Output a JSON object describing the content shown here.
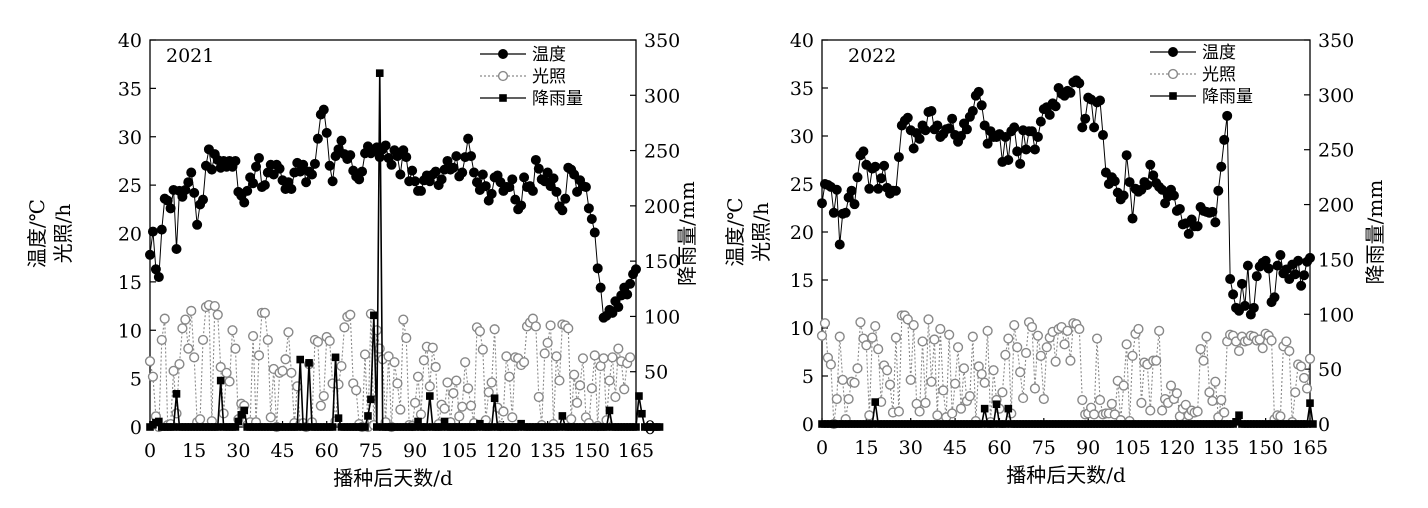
{
  "chart_data": [
    {
      "type": "line",
      "year_label": "2021",
      "xlabel": "播种后天数/d",
      "ylabel_left": [
        "温度/℃",
        "光照/h"
      ],
      "ylabel_right": "降雨量/mm",
      "xlim": [
        0,
        165
      ],
      "ylim_left": [
        0,
        40
      ],
      "ylim_right": [
        0,
        350
      ],
      "xticks": [
        "0",
        "15",
        "30",
        "45",
        "60",
        "75",
        "90",
        "105",
        "120",
        "135",
        "150",
        "165"
      ],
      "yticks_left": [
        "0",
        "5",
        "10",
        "15",
        "20",
        "25",
        "30",
        "35",
        "40"
      ],
      "yticks_right": [
        "0",
        "50",
        "100",
        "150",
        "200",
        "250",
        "300",
        "350"
      ],
      "legend_position": "top-right",
      "series": [
        {
          "name": "温度",
          "axis": "left",
          "marker": "filled-circle",
          "values": [
            17.8,
            20.2,
            16.3,
            15.5,
            20.4,
            23.6,
            23.4,
            22.6,
            24.5,
            18.4,
            24.4,
            23.8,
            24.5,
            25.3,
            26.3,
            24.2,
            20.9,
            23.0,
            23.5,
            27.0,
            28.7,
            26.6,
            28.2,
            27.6,
            26.8,
            27.5,
            26.9,
            27.5,
            26.9,
            27.5,
            24.3,
            23.9,
            23.2,
            24.4,
            25.8,
            25.2,
            26.9,
            27.8,
            24.8,
            25.0,
            26.3,
            27.1,
            26.1,
            27.1,
            26.7,
            25.5,
            24.6,
            25.3,
            24.6,
            26.3,
            27.3,
            26.4,
            27.1,
            25.3,
            26.4,
            26.1,
            27.2,
            29.8,
            32.3,
            32.8,
            30.4,
            27.0,
            25.4,
            28.0,
            28.7,
            29.6,
            28.2,
            27.7,
            28.1,
            26.5,
            25.9,
            25.6,
            26.4,
            28.3,
            29.0,
            28.3,
            28.6,
            28.9,
            27.9,
            28.7,
            29.1,
            27.8,
            27.1,
            28.6,
            28.0,
            26.1,
            28.6,
            27.9,
            25.4,
            26.5,
            25.4,
            24.4,
            24.4,
            25.5,
            26.0,
            25.4,
            26.1,
            26.4,
            25.0,
            25.6,
            26.6,
            27.5,
            26.6,
            26.8,
            28.0,
            25.9,
            26.3,
            27.9,
            29.8,
            28.0,
            26.3,
            25.3,
            24.5,
            26.1,
            24.9,
            23.4,
            24.1,
            25.8,
            26.0,
            25.3,
            24.4,
            24.8,
            24.8,
            25.6,
            23.5,
            22.5,
            22.9,
            25.8,
            24.8,
            24.9,
            24.4,
            27.6,
            26.7,
            25.6,
            25.4,
            26.3,
            24.9,
            25.7,
            24.3,
            22.8,
            22.4,
            23.6,
            26.8,
            26.6,
            26.1,
            24.3,
            25.5,
            24.9,
            24.8,
            22.6,
            21.5,
            20.1,
            16.4,
            14.4,
            11.3,
            11.5,
            12.1,
            11.8,
            13.0,
            12.4,
            13.6,
            14.4,
            13.7,
            14.8,
            15.8,
            16.3
          ],
          "color": "#000000"
        },
        {
          "name": "光照",
          "axis": "left",
          "marker": "open-circle",
          "values": [
            6.8,
            5.2,
            1.1,
            0.0,
            9.0,
            11.2,
            0.2,
            0.3,
            5.8,
            1.4,
            6.5,
            10.2,
            11.1,
            8.1,
            12.0,
            7.2,
            0.5,
            0.8,
            9.0,
            12.4,
            12.6,
            0.6,
            12.5,
            11.6,
            6.2,
            1.4,
            5.6,
            4.7,
            10.0,
            8.1,
            0.8,
            2.4,
            2.2,
            0.2,
            0.5,
            9.4,
            0.5,
            7.4,
            11.8,
            11.8,
            9.0,
            1.0,
            6.0,
            0.0,
            5.6,
            5.8,
            7.0,
            9.8,
            5.6,
            0.4,
            4.2,
            0.3,
            0.4,
            0.0,
            6.5,
            0.5,
            9.0,
            8.8,
            2.2,
            3.2,
            9.3,
            8.9,
            4.5,
            0.6,
            4.4,
            6.3,
            10.3,
            11.4,
            11.6,
            4.5,
            3.8,
            0.3,
            0.0,
            7.5,
            0.0,
            11.7,
            0.2,
            10.0,
            8.1,
            7.0,
            0.5,
            7.3,
            0.0,
            6.7,
            4.5,
            1.8,
            11.1,
            9.2,
            0.2,
            0.1,
            2.5,
            5.2,
            1.3,
            6.9,
            8.3,
            4.2,
            8.2,
            6.2,
            0.3,
            2.3,
            1.9,
            4.6,
            0.5,
            3.5,
            4.8,
            1.1,
            2.1,
            6.7,
            4.0,
            2.2,
            0.4,
            10.3,
            9.9,
            8.0,
            0.7,
            3.6,
            4.6,
            10.1,
            2.0,
            0.1,
            1.6,
            7.3,
            5.2,
            1.0,
            7.2,
            7.1,
            6.4,
            6.7,
            10.4,
            10.8,
            11.2,
            10.4,
            3.1,
            0.2,
            7.6,
            8.7,
            10.5,
            0.3,
            7.3,
            4.8,
            10.6,
            10.5,
            10.2,
            0.8,
            5.4,
            2.5,
            4.3,
            7.1,
            1.0,
            0.4,
            4.0,
            7.4,
            0.1,
            6.3,
            7.1,
            0.7,
            4.8,
            7.2,
            3.1,
            8.1,
            6.8,
            3.9,
            6.6,
            7.2
          ],
          "color": "#888888"
        },
        {
          "name": "降雨量",
          "axis": "right",
          "marker": "filled-square",
          "values": [
            0,
            2,
            4,
            5,
            0,
            0,
            0,
            0,
            0,
            30,
            0,
            0,
            0,
            0,
            0,
            0,
            0,
            0,
            0,
            0,
            0,
            0,
            0,
            0,
            42,
            0,
            0,
            0,
            0,
            0,
            5,
            11,
            15,
            0,
            0,
            0,
            0,
            0,
            0,
            0,
            0,
            0,
            0,
            0,
            0,
            0,
            0,
            0,
            0,
            0,
            0,
            61,
            0,
            0,
            58,
            0,
            0,
            0,
            0,
            0,
            0,
            0,
            0,
            63,
            8,
            0,
            0,
            0,
            0,
            0,
            0,
            0,
            0,
            0,
            10,
            25,
            101,
            0,
            320,
            0,
            0,
            0,
            0,
            0,
            0,
            0,
            0,
            0,
            0,
            0,
            0,
            5,
            0,
            0,
            0,
            28,
            0,
            0,
            0,
            0,
            5,
            0,
            0,
            0,
            0,
            0,
            0,
            0,
            0,
            0,
            0,
            0,
            3,
            0,
            0,
            0,
            0,
            26,
            0,
            0,
            0,
            0,
            0,
            0,
            0,
            0,
            3,
            0,
            0,
            0,
            0,
            0,
            0,
            0,
            0,
            0,
            0,
            0,
            0,
            0,
            10,
            0,
            0,
            0,
            0,
            0,
            0,
            0,
            0,
            0,
            0,
            0,
            0,
            0,
            0,
            0,
            15,
            0,
            0,
            0,
            0,
            0,
            0,
            0,
            0,
            0,
            28,
            12,
            0,
            0,
            0,
            0,
            0,
            0
          ],
          "color": "#000000"
        }
      ]
    },
    {
      "type": "line",
      "year_label": "2022",
      "xlabel": "播种后天数/d",
      "ylabel_left": [
        "温度/℃",
        "光照/h"
      ],
      "ylabel_right": "降雨量/mm",
      "xlim": [
        0,
        165
      ],
      "ylim_left": [
        0,
        40
      ],
      "ylim_right": [
        0,
        350
      ],
      "xticks": [
        "0",
        "15",
        "30",
        "45",
        "60",
        "75",
        "90",
        "105",
        "120",
        "135",
        "150",
        "165"
      ],
      "yticks_left": [
        "0",
        "5",
        "10",
        "15",
        "20",
        "25",
        "30",
        "35",
        "40"
      ],
      "yticks_right": [
        "0",
        "50",
        "100",
        "150",
        "200",
        "250",
        "300",
        "350"
      ],
      "legend_position": "top-right",
      "series": [
        {
          "name": "温度",
          "axis": "left",
          "marker": "filled-circle",
          "values": [
            23.0,
            25.0,
            24.9,
            24.7,
            22.0,
            24.4,
            18.7,
            21.9,
            22.0,
            23.6,
            24.3,
            22.9,
            25.7,
            28.0,
            28.4,
            27.0,
            24.5,
            26.6,
            26.8,
            24.5,
            25.6,
            26.9,
            24.6,
            24.0,
            24.3,
            24.3,
            27.8,
            31.1,
            31.6,
            31.9,
            30.6,
            28.7,
            30.3,
            29.7,
            31.1,
            30.6,
            32.5,
            32.6,
            30.7,
            31.1,
            29.9,
            30.2,
            30.7,
            30.8,
            31.8,
            30.1,
            29.4,
            30.0,
            31.3,
            30.7,
            32.0,
            32.6,
            34.2,
            34.6,
            33.2,
            31.1,
            29.2,
            30.5,
            29.9,
            29.9,
            30.2,
            27.3,
            29.9,
            27.5,
            30.5,
            30.9,
            28.4,
            27.1,
            30.6,
            28.6,
            30.5,
            30.5,
            28.6,
            29.9,
            31.5,
            32.8,
            33.0,
            32.2,
            33.4,
            33.1,
            35.0,
            34.4,
            34.2,
            34.7,
            34.5,
            35.6,
            35.8,
            35.5,
            30.9,
            31.8,
            34.0,
            33.8,
            30.9,
            33.5,
            33.7,
            30.1,
            26.2,
            25.0,
            25.7,
            25.3,
            24.1,
            23.4,
            23.8,
            28.0,
            25.2,
            21.4,
            24.5,
            24.2,
            24.4,
            25.2,
            24.9,
            27.0,
            25.9,
            25.1,
            24.7,
            24.4,
            23.0,
            23.7,
            24.4,
            23.8,
            22.2,
            22.4,
            20.8,
            20.9,
            19.8,
            21.3,
            20.6,
            20.6,
            22.6,
            22.2,
            22.1,
            22.0,
            22.1,
            21.0,
            24.3,
            26.8,
            29.6,
            32.1,
            15.1,
            13.5,
            12.1,
            11.8,
            14.6,
            12.3,
            16.5,
            11.4,
            12.1,
            15.4,
            16.4,
            16.8,
            17.0,
            16.2,
            12.7,
            13.2,
            16.5,
            17.6,
            15.7,
            16.1,
            15.1,
            16.6,
            15.6,
            17.0,
            14.4,
            15.5,
            16.9,
            17.3
          ],
          "color": "#000000"
        },
        {
          "name": "光照",
          "axis": "left",
          "marker": "open-circle",
          "values": [
            9.2,
            10.5,
            6.9,
            6.2,
            0.0,
            2.6,
            9.1,
            4.6,
            0.5,
            2.6,
            4.4,
            4.3,
            5.8,
            10.6,
            8.9,
            8.2,
            0.9,
            9.0,
            10.2,
            7.8,
            2.3,
            6.1,
            5.6,
            4.1,
            1.2,
            9.0,
            1.3,
            11.3,
            11.3,
            10.9,
            4.6,
            10.3,
            2.1,
            1.3,
            8.6,
            2.2,
            10.9,
            4.4,
            8.8,
            0.9,
            9.9,
            3.5,
            0.7,
            9.3,
            1.1,
            4.2,
            8.0,
            1.6,
            5.8,
            2.4,
            2.9,
            9.1,
            0.3,
            6.0,
            5.2,
            4.3,
            9.7,
            0.2,
            5.6,
            2.5,
            1.6,
            3.3,
            7.2,
            8.9,
            1.1,
            10.3,
            8.0,
            5.4,
            2.7,
            7.4,
            10.6,
            10.1,
            3.7,
            9.2,
            7.1,
            2.6,
            8.0,
            9.0,
            9.6,
            6.5,
            9.9,
            10.1,
            8.3,
            9.7,
            6.6,
            10.5,
            10.4,
            9.9,
            2.5,
            1.0,
            1.1,
            1.7,
            1.0,
            8.9,
            2.5,
            1.0,
            1.1,
            1.1,
            2.1,
            1.0,
            4.5,
            0.4,
            4.0,
            8.3,
            0.3,
            7.1,
            9.4,
            9.9,
            2.2,
            6.4,
            6.2,
            1.4,
            6.6,
            6.6,
            9.7,
            1.4,
            2.6,
            2.2,
            4.0,
            2.6,
            3.2,
            0.8,
            1.6,
            2.0,
            0.9,
            1.4,
            1.2,
            1.3,
            7.8,
            6.6,
            9.1,
            3.3,
            2.4,
            4.4,
            0.7,
            2.5,
            1.2,
            8.6,
            9.3,
            9.2,
            8.6,
            7.6,
            9.1,
            8.6,
            8.7,
            9.2,
            9.1,
            8.7,
            8.8,
            7.9,
            9.4,
            9.2,
            8.7,
            0.5,
            0.9,
            0.8,
            8.1,
            8.6,
            7.6,
            0.2,
            3.3,
            6.2,
            6.0,
            4.8,
            3.7,
            6.8
          ],
          "color": "#888888"
        },
        {
          "name": "降雨量",
          "axis": "right",
          "marker": "filled-square",
          "values": [
            0,
            0,
            0,
            0,
            0,
            0,
            0,
            0,
            0,
            0,
            0,
            0,
            0,
            0,
            0,
            0,
            0,
            0,
            20,
            0,
            0,
            0,
            0,
            0,
            0,
            0,
            0,
            0,
            0,
            0,
            0,
            0,
            0,
            0,
            0,
            0,
            0,
            0,
            0,
            0,
            0,
            0,
            0,
            0,
            0,
            0,
            0,
            0,
            0,
            0,
            0,
            0,
            0,
            0,
            0,
            14,
            0,
            0,
            0,
            18,
            0,
            0,
            0,
            14,
            0,
            0,
            0,
            0,
            0,
            0,
            0,
            0,
            0,
            0,
            0,
            0,
            0,
            0,
            0,
            0,
            0,
            0,
            0,
            0,
            0,
            0,
            0,
            0,
            0,
            0,
            0,
            0,
            0,
            0,
            0,
            0,
            0,
            0,
            0,
            0,
            0,
            0,
            0,
            0,
            0,
            0,
            0,
            0,
            0,
            0,
            0,
            0,
            0,
            0,
            0,
            0,
            0,
            0,
            0,
            0,
            0,
            0,
            0,
            0,
            0,
            0,
            0,
            0,
            0,
            0,
            0,
            0,
            0,
            0,
            0,
            0,
            0,
            0,
            0,
            0,
            2,
            8,
            0,
            0,
            0,
            0,
            0,
            0,
            0,
            0,
            0,
            0,
            0,
            0,
            0,
            0,
            0,
            0,
            0,
            0,
            0,
            0,
            0,
            0,
            0,
            19,
            0
          ],
          "color": "#000000"
        }
      ]
    }
  ]
}
